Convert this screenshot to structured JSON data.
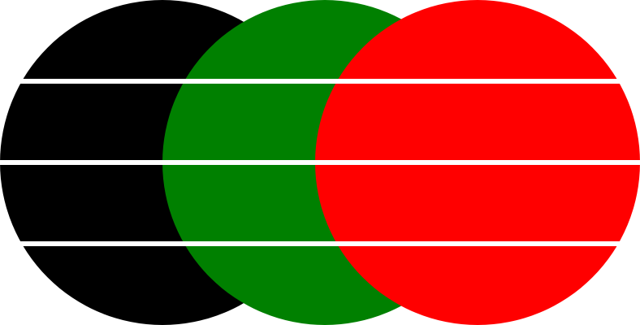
{
  "background": "#ffffff",
  "circles": [
    {
      "name": "black-circle",
      "color": "#000000"
    },
    {
      "name": "green-circle",
      "color": "#008000"
    },
    {
      "name": "red-circle",
      "color": "#ff0000"
    }
  ],
  "stripes": {
    "color": "#ffffff",
    "count": 3
  }
}
